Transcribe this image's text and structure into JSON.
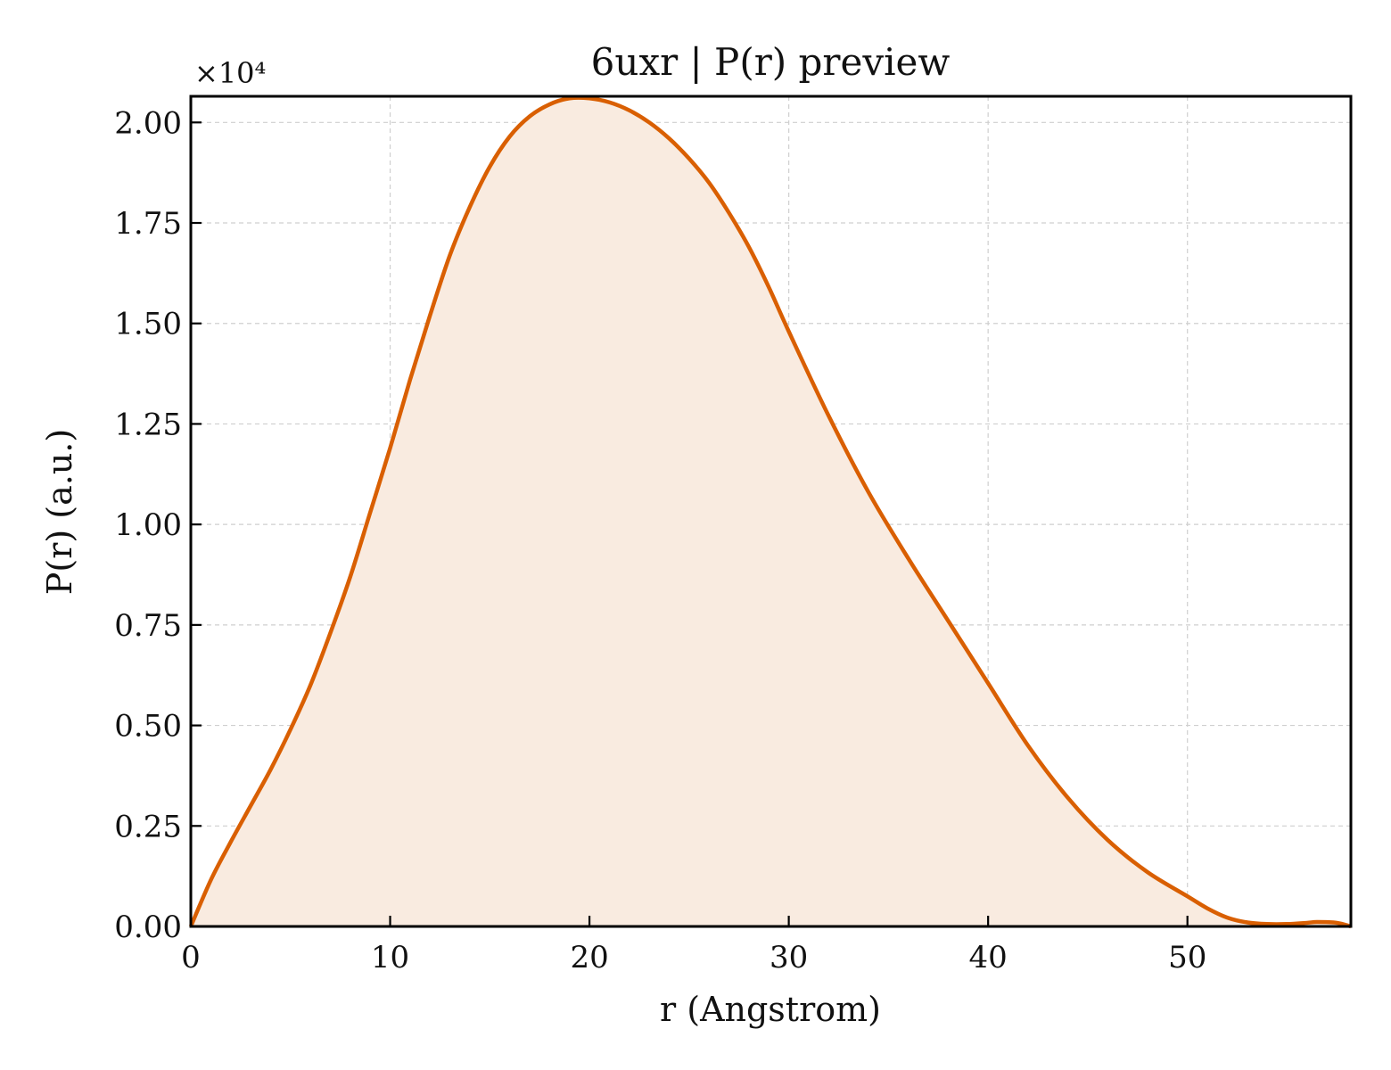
{
  "chart_data": {
    "type": "area",
    "title": "6uxr | P(r) preview",
    "xlabel": "r (Angstrom)",
    "ylabel": "P(r) (a.u.)",
    "y_multiplier": "×10⁴",
    "xlim": [
      0,
      58.2
    ],
    "ylim": [
      0,
      2.065
    ],
    "xticks": [
      0,
      10,
      20,
      30,
      40,
      50
    ],
    "xtick_labels": [
      "0",
      "10",
      "20",
      "30",
      "40",
      "50"
    ],
    "yticks": [
      0,
      0.25,
      0.5,
      0.75,
      1.0,
      1.25,
      1.5,
      1.75,
      2.0
    ],
    "ytick_labels": [
      "0.00",
      "0.25",
      "0.50",
      "0.75",
      "1.00",
      "1.25",
      "1.50",
      "1.75",
      "2.00"
    ],
    "grid": true,
    "line_color": "#d95f02",
    "fill_color": "#f9ebe0",
    "series": [
      {
        "x": [
          0,
          1,
          2,
          3,
          4,
          5,
          6,
          7,
          8,
          9,
          10,
          11,
          12,
          13,
          14,
          15,
          16,
          17,
          18,
          19,
          20,
          21,
          22,
          23,
          24,
          25,
          26,
          27,
          28,
          29,
          30,
          32,
          34,
          36,
          38,
          40,
          42,
          44,
          46,
          48,
          50,
          51,
          52,
          53,
          54,
          55,
          56,
          56.5,
          57.5,
          58.2
        ],
        "y": [
          0,
          0.115,
          0.21,
          0.3,
          0.39,
          0.49,
          0.6,
          0.73,
          0.87,
          1.03,
          1.19,
          1.36,
          1.52,
          1.67,
          1.79,
          1.89,
          1.965,
          2.015,
          2.045,
          2.06,
          2.06,
          2.05,
          2.03,
          2.0,
          1.96,
          1.91,
          1.85,
          1.775,
          1.69,
          1.59,
          1.48,
          1.27,
          1.08,
          0.915,
          0.76,
          0.605,
          0.45,
          0.32,
          0.215,
          0.135,
          0.075,
          0.045,
          0.022,
          0.01,
          0.006,
          0.006,
          0.009,
          0.011,
          0.009,
          0
        ]
      }
    ]
  }
}
